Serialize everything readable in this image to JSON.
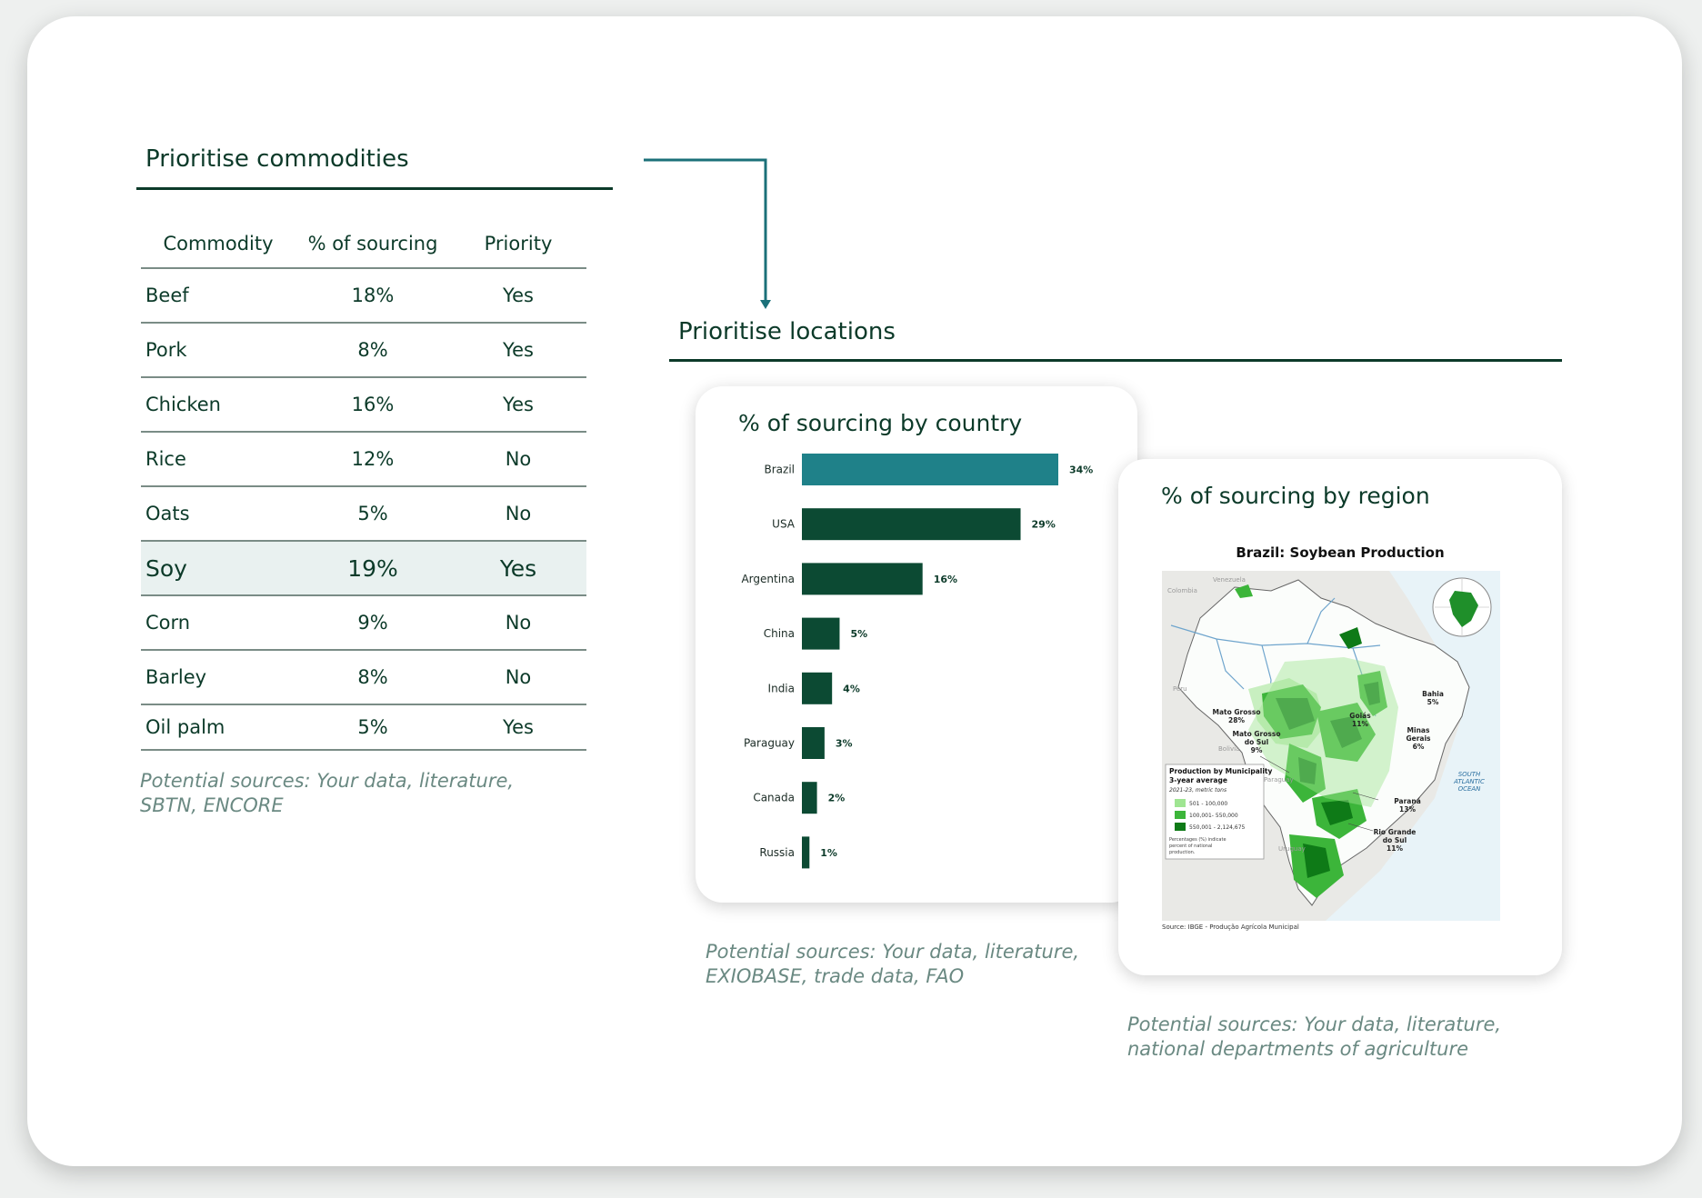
{
  "commodities": {
    "title": "Prioritise commodities",
    "headers": [
      "Commodity",
      "% of sourcing",
      "Priority"
    ],
    "rows": [
      {
        "name": "Beef",
        "pct": "18%",
        "priority": "Yes"
      },
      {
        "name": "Pork",
        "pct": "8%",
        "priority": "Yes"
      },
      {
        "name": "Chicken",
        "pct": "16%",
        "priority": "Yes"
      },
      {
        "name": "Rice",
        "pct": "12%",
        "priority": "No"
      },
      {
        "name": "Oats",
        "pct": "5%",
        "priority": "No"
      },
      {
        "name": "Soy",
        "pct": "19%",
        "priority": "Yes",
        "highlighted": true
      },
      {
        "name": "Corn",
        "pct": "9%",
        "priority": "No"
      },
      {
        "name": "Barley",
        "pct": "8%",
        "priority": "No"
      },
      {
        "name": "Oil palm",
        "pct": "5%",
        "priority": "Yes"
      }
    ],
    "sources": "Potential sources: Your data, literature, SBTN, ENCORE"
  },
  "locations": {
    "title": "Prioritise locations",
    "country_panel": {
      "title": "% of sourcing by country",
      "sources": "Potential sources: Your data, literature, EXIOBASE, trade data, FAO"
    },
    "region_panel": {
      "title": "% of sourcing by region",
      "map_title": "Brazil: Soybean Production",
      "sources": "Potential sources: Your data, literature, national departments of agriculture",
      "map_labels": {
        "colombia": "Colombia",
        "venezuela": "Venezuela",
        "peru": "Peru",
        "bolivia": "Bolivia",
        "paraguay": "Paraguay",
        "uruguay": "Uruguay",
        "ocean": [
          "SOUTH",
          "ATLANTIC",
          "OCEAN"
        ],
        "regions": [
          {
            "lines": [
              "Bahia",
              "5%"
            ]
          },
          {
            "lines": [
              "Mato Grosso",
              "28%"
            ]
          },
          {
            "lines": [
              "Goiás",
              "11%"
            ]
          },
          {
            "lines": [
              "Mato Grosso",
              "do Sul",
              "9%"
            ]
          },
          {
            "lines": [
              "Minas",
              "Gerais",
              "6%"
            ]
          },
          {
            "lines": [
              "Paraná",
              "13%"
            ]
          },
          {
            "lines": [
              "Rio Grande",
              "do Sul",
              "11%"
            ]
          }
        ]
      },
      "map_legend": {
        "title": [
          "Production by Municipality",
          "3-year average"
        ],
        "subtitle": "2021-23, metric tons",
        "items": [
          {
            "label": "501 - 100,000",
            "color": "#9fe592"
          },
          {
            "label": "100,001- 550,000",
            "color": "#3cb53a"
          },
          {
            "label": "550,001 - 2,124,675",
            "color": "#0e7a17"
          }
        ],
        "note": [
          "Percentages (%) indicate",
          "percent of national",
          "production."
        ]
      },
      "map_source": "Source: IBGE - Produção Agrícola Municipal"
    }
  },
  "colors": {
    "dark_green": "#0c4a33",
    "teal": "#1f8189",
    "arrow": "#1b7079"
  },
  "chart_data": {
    "type": "bar",
    "orientation": "horizontal",
    "categories": [
      "Brazil",
      "USA",
      "Argentina",
      "China",
      "India",
      "Paraguay",
      "Canada",
      "Russia"
    ],
    "values": [
      34,
      29,
      16,
      5,
      4,
      3,
      2,
      1
    ],
    "labels": [
      "34%",
      "29%",
      "16%",
      "5%",
      "4%",
      "3%",
      "2%",
      "1%"
    ],
    "highlight": "Brazil",
    "xlim": [
      0,
      35
    ],
    "grid": false
  }
}
